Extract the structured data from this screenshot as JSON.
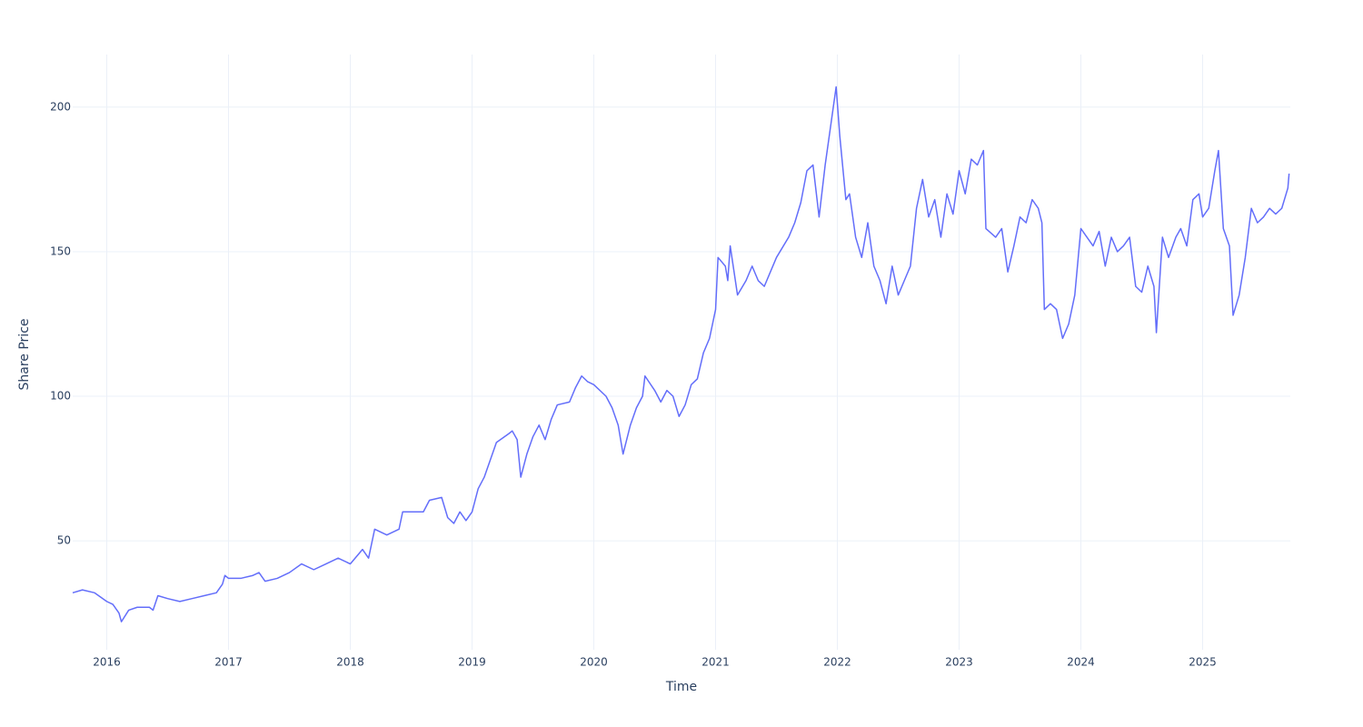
{
  "chart_data": {
    "type": "line",
    "xlabel": "Time",
    "ylabel": "Share Price",
    "color": "#636efa",
    "grid": true,
    "xlim": [
      2015.72,
      2025.72
    ],
    "xticks": [
      2016,
      2017,
      2018,
      2019,
      2020,
      2021,
      2022,
      2023,
      2024,
      2025
    ],
    "ylim": [
      12.3,
      218.2
    ],
    "yticks": [
      50,
      100,
      150,
      200
    ],
    "x": [
      2015.72,
      2015.8,
      2015.9,
      2016.0,
      2016.05,
      2016.1,
      2016.12,
      2016.18,
      2016.25,
      2016.35,
      2016.38,
      2016.42,
      2016.5,
      2016.6,
      2016.7,
      2016.8,
      2016.9,
      2016.95,
      2016.97,
      2017.0,
      2017.1,
      2017.2,
      2017.25,
      2017.3,
      2017.4,
      2017.5,
      2017.6,
      2017.7,
      2017.8,
      2017.9,
      2018.0,
      2018.1,
      2018.15,
      2018.2,
      2018.3,
      2018.4,
      2018.43,
      2018.5,
      2018.6,
      2018.65,
      2018.75,
      2018.8,
      2018.85,
      2018.9,
      2018.95,
      2019.0,
      2019.05,
      2019.1,
      2019.15,
      2019.2,
      2019.3,
      2019.33,
      2019.37,
      2019.4,
      2019.45,
      2019.5,
      2019.55,
      2019.6,
      2019.65,
      2019.7,
      2019.8,
      2019.85,
      2019.9,
      2019.95,
      2020.0,
      2020.1,
      2020.15,
      2020.2,
      2020.24,
      2020.3,
      2020.35,
      2020.4,
      2020.42,
      2020.5,
      2020.55,
      2020.6,
      2020.65,
      2020.7,
      2020.75,
      2020.8,
      2020.85,
      2020.9,
      2020.95,
      2021.0,
      2021.02,
      2021.08,
      2021.1,
      2021.12,
      2021.18,
      2021.25,
      2021.3,
      2021.35,
      2021.4,
      2021.5,
      2021.6,
      2021.65,
      2021.7,
      2021.75,
      2021.8,
      2021.85,
      2021.9,
      2021.95,
      2021.99,
      2022.02,
      2022.07,
      2022.1,
      2022.15,
      2022.2,
      2022.25,
      2022.3,
      2022.35,
      2022.4,
      2022.45,
      2022.5,
      2022.55,
      2022.6,
      2022.65,
      2022.7,
      2022.75,
      2022.8,
      2022.85,
      2022.9,
      2022.95,
      2023.0,
      2023.05,
      2023.1,
      2023.15,
      2023.2,
      2023.22,
      2023.3,
      2023.35,
      2023.4,
      2023.45,
      2023.5,
      2023.55,
      2023.6,
      2023.65,
      2023.68,
      2023.7,
      2023.75,
      2023.8,
      2023.85,
      2023.9,
      2023.95,
      2024.0,
      2024.05,
      2024.1,
      2024.15,
      2024.2,
      2024.25,
      2024.3,
      2024.35,
      2024.4,
      2024.45,
      2024.5,
      2024.55,
      2024.6,
      2024.62,
      2024.67,
      2024.72,
      2024.78,
      2024.82,
      2024.87,
      2024.92,
      2024.97,
      2025.0,
      2025.05,
      2025.1,
      2025.13,
      2025.17,
      2025.22,
      2025.25,
      2025.3,
      2025.35,
      2025.4,
      2025.45,
      2025.5,
      2025.55,
      2025.6,
      2025.65,
      2025.7,
      2025.71
    ],
    "values": [
      32,
      33,
      32,
      29,
      28,
      25,
      22,
      26,
      27,
      27,
      26,
      31,
      30,
      29,
      30,
      31,
      32,
      35,
      38,
      37,
      37,
      38,
      39,
      36,
      37,
      39,
      42,
      40,
      42,
      44,
      42,
      47,
      44,
      54,
      52,
      54,
      60,
      60,
      60,
      64,
      65,
      58,
      56,
      60,
      57,
      60,
      68,
      72,
      78,
      84,
      87,
      88,
      85,
      72,
      80,
      86,
      90,
      85,
      92,
      97,
      98,
      103,
      107,
      105,
      104,
      100,
      96,
      90,
      80,
      90,
      96,
      100,
      107,
      102,
      98,
      102,
      100,
      93,
      97,
      104,
      106,
      115,
      120,
      130,
      148,
      145,
      140,
      152,
      135,
      140,
      145,
      140,
      138,
      148,
      155,
      160,
      167,
      178,
      180,
      162,
      180,
      195,
      207,
      190,
      168,
      170,
      155,
      148,
      160,
      145,
      140,
      132,
      145,
      135,
      140,
      145,
      165,
      175,
      162,
      168,
      155,
      170,
      163,
      178,
      170,
      182,
      180,
      185,
      158,
      155,
      158,
      143,
      152,
      162,
      160,
      168,
      165,
      160,
      130,
      132,
      130,
      120,
      125,
      135,
      158,
      155,
      152,
      157,
      145,
      155,
      150,
      152,
      155,
      138,
      136,
      145,
      138,
      122,
      155,
      148,
      155,
      158,
      152,
      168,
      170,
      162,
      165,
      178,
      185,
      158,
      152,
      128,
      135,
      148,
      165,
      160,
      162,
      165,
      163,
      165,
      172,
      177
    ]
  }
}
